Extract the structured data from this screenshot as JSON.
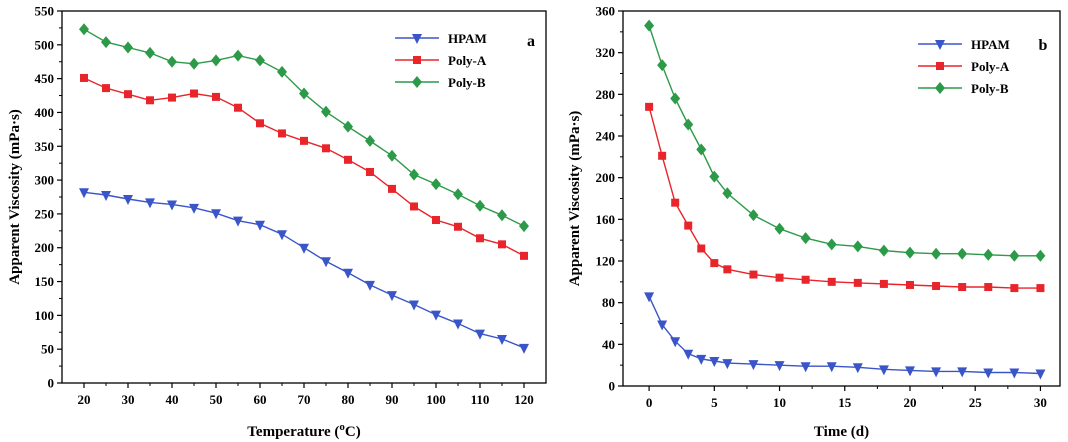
{
  "chart_data": [
    {
      "type": "line",
      "panel_label": "a",
      "xlabel_main": "Temperature (",
      "xlabel_sup": "o",
      "xlabel_tail": "C)",
      "ylabel": "Apparent Viscosity (mPa·s)",
      "xlim": [
        15,
        125
      ],
      "ylim": [
        0,
        550
      ],
      "xticks": [
        20,
        30,
        40,
        50,
        60,
        70,
        80,
        90,
        100,
        110,
        120
      ],
      "yticks": [
        0,
        50,
        100,
        150,
        200,
        250,
        300,
        350,
        400,
        450,
        500,
        550
      ],
      "x": [
        20,
        25,
        30,
        35,
        40,
        45,
        50,
        55,
        60,
        65,
        70,
        75,
        80,
        85,
        90,
        95,
        100,
        105,
        110,
        115,
        120
      ],
      "legend_position": "top-right",
      "series": [
        {
          "name": "HPAM",
          "color": "#3a55c8",
          "marker": "triangle-down",
          "values": [
            282,
            278,
            272,
            267,
            264,
            259,
            251,
            240,
            234,
            220,
            200,
            180,
            163,
            145,
            130,
            116,
            101,
            88,
            73,
            65,
            52
          ]
        },
        {
          "name": "Poly-A",
          "color": "#e8252b",
          "marker": "square",
          "values": [
            451,
            436,
            427,
            418,
            422,
            428,
            423,
            407,
            384,
            369,
            358,
            347,
            330,
            312,
            287,
            261,
            241,
            231,
            214,
            205,
            188
          ]
        },
        {
          "name": "Poly-B",
          "color": "#2c9a48",
          "marker": "diamond",
          "values": [
            523,
            504,
            496,
            488,
            475,
            472,
            477,
            484,
            477,
            460,
            428,
            401,
            379,
            358,
            336,
            308,
            294,
            279,
            262,
            248,
            232
          ]
        }
      ]
    },
    {
      "type": "line",
      "panel_label": "b",
      "xlabel": "Time (d)",
      "ylabel": "Apparent Viscosity (mPa·s)",
      "xlim": [
        -2,
        31.5
      ],
      "ylim": [
        0,
        360
      ],
      "xticks": [
        0,
        5,
        10,
        15,
        20,
        25,
        30
      ],
      "yticks": [
        0,
        40,
        80,
        120,
        160,
        200,
        240,
        280,
        320,
        360
      ],
      "x": [
        0,
        1,
        2,
        3,
        4,
        5,
        6,
        8,
        10,
        12,
        14,
        16,
        18,
        20,
        22,
        24,
        26,
        28,
        30
      ],
      "legend_position": "top-right",
      "series": [
        {
          "name": "HPAM",
          "color": "#3a55c8",
          "marker": "triangle-down",
          "values": [
            86,
            59,
            43,
            31,
            26,
            24,
            22,
            21,
            20,
            19,
            19,
            18,
            16,
            15,
            14,
            14,
            13,
            13,
            12
          ]
        },
        {
          "name": "Poly-A",
          "color": "#e8252b",
          "marker": "square",
          "values": [
            268,
            221,
            176,
            154,
            132,
            118,
            112,
            107,
            104,
            102,
            100,
            99,
            98,
            97,
            96,
            95,
            95,
            94,
            94
          ]
        },
        {
          "name": "Poly-B",
          "color": "#2c9a48",
          "marker": "diamond",
          "values": [
            346,
            308,
            276,
            251,
            227,
            201,
            185,
            164,
            151,
            142,
            136,
            134,
            130,
            128,
            127,
            127,
            126,
            125,
            125
          ]
        }
      ]
    }
  ]
}
